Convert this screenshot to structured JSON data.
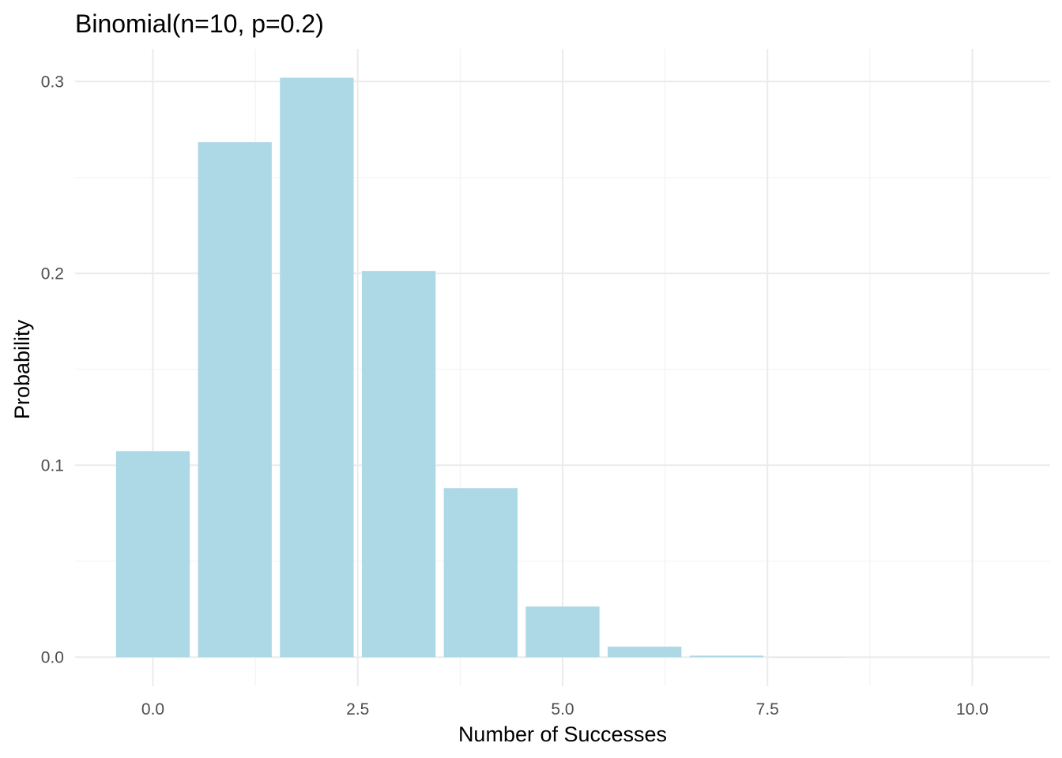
{
  "chart_data": {
    "type": "bar",
    "title": "Binomial(n=10, p=0.2)",
    "xlabel": "Number of Successes",
    "ylabel": "Probability",
    "x": [
      0,
      1,
      2,
      3,
      4,
      5,
      6,
      7,
      8,
      9,
      10
    ],
    "values": [
      0.1074,
      0.2684,
      0.302,
      0.2013,
      0.0881,
      0.0264,
      0.0055,
      0.0008,
      0.0001,
      0.0,
      0.0
    ],
    "xlim": [
      -0.95,
      10.95
    ],
    "ylim": [
      -0.0151,
      0.317
    ],
    "x_ticks": [
      0,
      2.5,
      5,
      7.5,
      10
    ],
    "x_tick_labels": [
      "0.0",
      "2.5",
      "5.0",
      "7.5",
      "10.0"
    ],
    "y_ticks": [
      0,
      0.1,
      0.2,
      0.3
    ],
    "y_tick_labels": [
      "0.0",
      "0.1",
      "0.2",
      "0.3"
    ],
    "bar_color": "#add8e6",
    "grid": true,
    "legend": "none"
  }
}
